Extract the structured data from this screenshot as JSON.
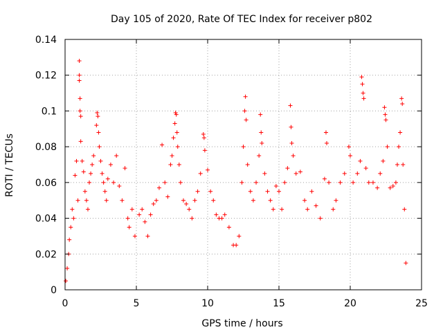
{
  "chart_data": {
    "type": "scatter",
    "title": "Day 105 of 2020, Rate Of TEC Index for receiver p802",
    "xlabel": "GPS time / hours",
    "ylabel": "ROTI / TECUs",
    "xlim": [
      0,
      25
    ],
    "ylim": [
      0,
      0.14
    ],
    "xticks": [
      "0",
      "5",
      "10",
      "15",
      "20",
      "25"
    ],
    "yticks": [
      "0",
      "0.02",
      "0.04",
      "0.06",
      "0.08",
      "0.1",
      "0.12",
      "0.14"
    ],
    "grid": true,
    "marker": "plus",
    "color": "#ff0000",
    "series": [
      {
        "points": [
          [
            0.05,
            0.005
          ],
          [
            0.15,
            0.012
          ],
          [
            0.25,
            0.02
          ],
          [
            0.3,
            0.028
          ],
          [
            0.4,
            0.035
          ],
          [
            0.5,
            0.045
          ],
          [
            0.6,
            0.04
          ],
          [
            0.7,
            0.064
          ],
          [
            0.8,
            0.072
          ],
          [
            0.9,
            0.05
          ],
          [
            1.0,
            0.128
          ],
          [
            1.0,
            0.12
          ],
          [
            1.0,
            0.117
          ],
          [
            1.05,
            0.107
          ],
          [
            1.05,
            0.1
          ],
          [
            1.1,
            0.097
          ],
          [
            1.1,
            0.083
          ],
          [
            1.2,
            0.072
          ],
          [
            1.3,
            0.066
          ],
          [
            1.4,
            0.055
          ],
          [
            1.5,
            0.05
          ],
          [
            1.6,
            0.045
          ],
          [
            1.7,
            0.06
          ],
          [
            1.8,
            0.065
          ],
          [
            1.9,
            0.07
          ],
          [
            2.0,
            0.075
          ],
          [
            2.2,
            0.092
          ],
          [
            2.25,
            0.099
          ],
          [
            2.3,
            0.097
          ],
          [
            2.35,
            0.088
          ],
          [
            2.4,
            0.08
          ],
          [
            2.5,
            0.072
          ],
          [
            2.6,
            0.065
          ],
          [
            2.7,
            0.06
          ],
          [
            2.8,
            0.055
          ],
          [
            2.9,
            0.05
          ],
          [
            3.0,
            0.062
          ],
          [
            3.2,
            0.07
          ],
          [
            3.4,
            0.06
          ],
          [
            3.6,
            0.075
          ],
          [
            3.8,
            0.058
          ],
          [
            4.0,
            0.05
          ],
          [
            4.2,
            0.068
          ],
          [
            4.4,
            0.04
          ],
          [
            4.5,
            0.035
          ],
          [
            4.7,
            0.045
          ],
          [
            4.9,
            0.03
          ],
          [
            5.2,
            0.042
          ],
          [
            5.4,
            0.045
          ],
          [
            5.6,
            0.038
          ],
          [
            5.8,
            0.03
          ],
          [
            6.0,
            0.042
          ],
          [
            6.2,
            0.048
          ],
          [
            6.4,
            0.05
          ],
          [
            6.6,
            0.057
          ],
          [
            6.8,
            0.081
          ],
          [
            7.0,
            0.06
          ],
          [
            7.2,
            0.052
          ],
          [
            7.4,
            0.07
          ],
          [
            7.5,
            0.075
          ],
          [
            7.6,
            0.085
          ],
          [
            7.7,
            0.093
          ],
          [
            7.75,
            0.099
          ],
          [
            7.8,
            0.098
          ],
          [
            7.85,
            0.088
          ],
          [
            7.9,
            0.08
          ],
          [
            8.0,
            0.07
          ],
          [
            8.1,
            0.06
          ],
          [
            8.3,
            0.05
          ],
          [
            8.5,
            0.048
          ],
          [
            8.7,
            0.045
          ],
          [
            8.9,
            0.04
          ],
          [
            9.1,
            0.05
          ],
          [
            9.3,
            0.055
          ],
          [
            9.5,
            0.065
          ],
          [
            9.7,
            0.087
          ],
          [
            9.75,
            0.085
          ],
          [
            9.8,
            0.078
          ],
          [
            10.0,
            0.067
          ],
          [
            10.2,
            0.055
          ],
          [
            10.4,
            0.05
          ],
          [
            10.6,
            0.042
          ],
          [
            10.8,
            0.04
          ],
          [
            11.0,
            0.04
          ],
          [
            11.2,
            0.042
          ],
          [
            11.5,
            0.035
          ],
          [
            11.8,
            0.025
          ],
          [
            12.0,
            0.025
          ],
          [
            12.2,
            0.03
          ],
          [
            12.4,
            0.06
          ],
          [
            12.5,
            0.08
          ],
          [
            12.6,
            0.1
          ],
          [
            12.65,
            0.108
          ],
          [
            12.7,
            0.095
          ],
          [
            12.8,
            0.07
          ],
          [
            13.0,
            0.055
          ],
          [
            13.2,
            0.05
          ],
          [
            13.4,
            0.06
          ],
          [
            13.6,
            0.075
          ],
          [
            13.7,
            0.098
          ],
          [
            13.75,
            0.088
          ],
          [
            13.8,
            0.082
          ],
          [
            14.0,
            0.065
          ],
          [
            14.2,
            0.055
          ],
          [
            14.4,
            0.05
          ],
          [
            14.6,
            0.045
          ],
          [
            14.8,
            0.058
          ],
          [
            15.0,
            0.055
          ],
          [
            15.2,
            0.045
          ],
          [
            15.4,
            0.06
          ],
          [
            15.6,
            0.068
          ],
          [
            15.8,
            0.103
          ],
          [
            15.85,
            0.091
          ],
          [
            15.9,
            0.082
          ],
          [
            16.0,
            0.075
          ],
          [
            16.2,
            0.065
          ],
          [
            16.5,
            0.066
          ],
          [
            16.8,
            0.05
          ],
          [
            17.0,
            0.045
          ],
          [
            17.3,
            0.055
          ],
          [
            17.6,
            0.047
          ],
          [
            17.9,
            0.04
          ],
          [
            18.2,
            0.062
          ],
          [
            18.3,
            0.088
          ],
          [
            18.35,
            0.082
          ],
          [
            18.5,
            0.06
          ],
          [
            18.8,
            0.045
          ],
          [
            19.0,
            0.05
          ],
          [
            19.3,
            0.06
          ],
          [
            19.6,
            0.065
          ],
          [
            19.9,
            0.08
          ],
          [
            20.0,
            0.075
          ],
          [
            20.2,
            0.06
          ],
          [
            20.5,
            0.065
          ],
          [
            20.7,
            0.072
          ],
          [
            20.8,
            0.119
          ],
          [
            20.85,
            0.115
          ],
          [
            20.9,
            0.11
          ],
          [
            20.95,
            0.107
          ],
          [
            21.1,
            0.068
          ],
          [
            21.3,
            0.06
          ],
          [
            21.6,
            0.06
          ],
          [
            21.9,
            0.057
          ],
          [
            22.1,
            0.065
          ],
          [
            22.3,
            0.072
          ],
          [
            22.4,
            0.102
          ],
          [
            22.45,
            0.098
          ],
          [
            22.5,
            0.095
          ],
          [
            22.6,
            0.08
          ],
          [
            22.8,
            0.057
          ],
          [
            23.0,
            0.058
          ],
          [
            23.2,
            0.06
          ],
          [
            23.3,
            0.07
          ],
          [
            23.4,
            0.08
          ],
          [
            23.5,
            0.088
          ],
          [
            23.6,
            0.107
          ],
          [
            23.65,
            0.104
          ],
          [
            23.7,
            0.07
          ],
          [
            23.8,
            0.045
          ],
          [
            23.9,
            0.015
          ]
        ]
      }
    ]
  }
}
